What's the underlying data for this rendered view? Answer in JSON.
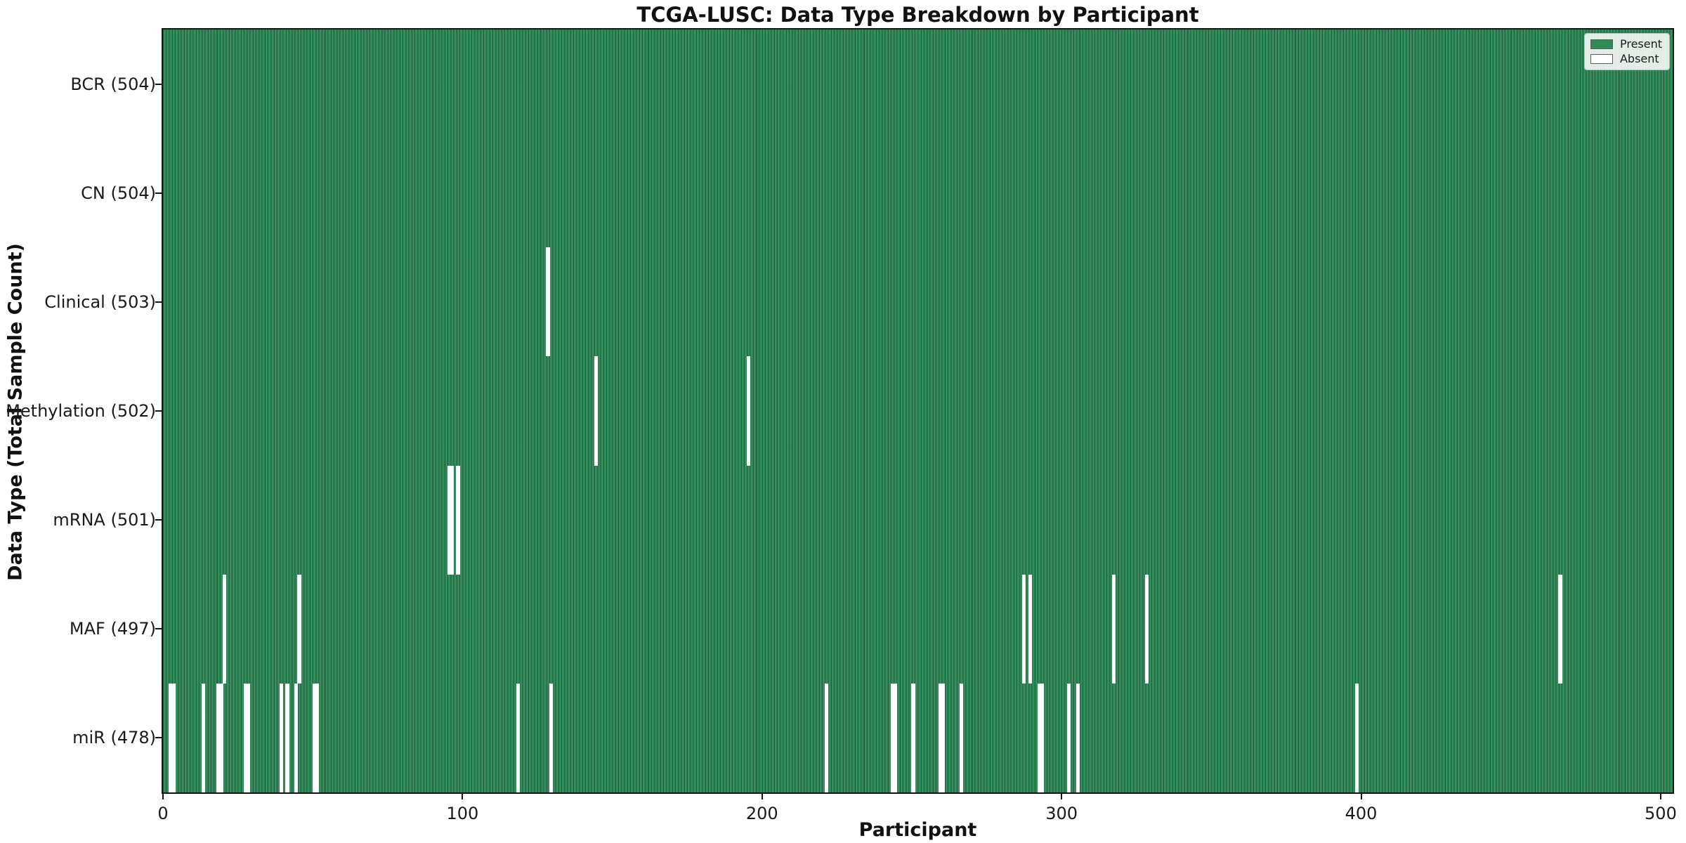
{
  "title": "TCGA-LUSC: Data Type Breakdown by Participant",
  "xlabel": "Participant",
  "ylabel": "Data Type (Total Sample Count)",
  "legend": {
    "position": "upper right",
    "items": [
      {
        "label": "Present",
        "color": "#2e8b57"
      },
      {
        "label": "Absent",
        "color": "#ffffff"
      }
    ]
  },
  "colors": {
    "present_fill": "#2e8b57",
    "absent_fill": "#ffffff",
    "cell_edge": "rgba(10,40,25,0.45)",
    "axis": "#141414"
  },
  "chart_data": {
    "type": "heatmap",
    "title": "TCGA-LUSC: Data Type Breakdown by Participant",
    "xlabel": "Participant",
    "ylabel": "Data Type (Total Sample Count)",
    "x_ticks": [
      0,
      100,
      200,
      300,
      400,
      500
    ],
    "xlim": [
      0,
      504
    ],
    "n_participants": 504,
    "grid": false,
    "legend_position": "upper right",
    "value_encoding": {
      "present": "#2e8b57",
      "absent": "#ffffff"
    },
    "rows": [
      {
        "key": "bcr",
        "label": "BCR (504)",
        "data_type": "BCR",
        "total": 504,
        "absent_participants": []
      },
      {
        "key": "cn",
        "label": "CN (504)",
        "data_type": "CN",
        "total": 504,
        "absent_participants": []
      },
      {
        "key": "clinical",
        "label": "Clinical (503)",
        "data_type": "Clinical",
        "total": 503,
        "absent_participants": [
          128
        ]
      },
      {
        "key": "methylation",
        "label": "Methylation (502)",
        "data_type": "Methylation",
        "total": 502,
        "absent_participants": [
          144,
          195
        ]
      },
      {
        "key": "mrna",
        "label": "mRNA (501)",
        "data_type": "mRNA",
        "total": 501,
        "absent_participants": [
          95,
          96,
          98
        ]
      },
      {
        "key": "maf",
        "label": "MAF (497)",
        "data_type": "MAF",
        "total": 497,
        "absent_participants": [
          20,
          45,
          287,
          289,
          317,
          328,
          466
        ]
      },
      {
        "key": "mir",
        "label": "miR (478)",
        "data_type": "miR",
        "total": 478,
        "absent_participants": [
          2,
          3,
          13,
          18,
          19,
          27,
          28,
          39,
          41,
          44,
          50,
          51,
          118,
          129,
          221,
          243,
          244,
          250,
          259,
          260,
          266,
          292,
          293,
          302,
          305,
          398
        ]
      }
    ]
  }
}
